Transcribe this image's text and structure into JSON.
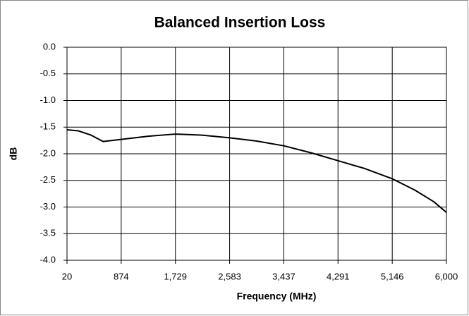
{
  "chart_data": {
    "type": "line",
    "title": "Balanced Insertion Loss",
    "xlabel": "Frequency (MHz)",
    "ylabel": "dB",
    "x": [
      20,
      200,
      400,
      589,
      874,
      1300,
      1729,
      2150,
      2583,
      3000,
      3437,
      3860,
      4291,
      4720,
      5146,
      5500,
      5800,
      6000
    ],
    "series": [
      {
        "name": "Balanced Insertion Loss",
        "color": "#000000",
        "values": [
          -1.55,
          -1.57,
          -1.65,
          -1.77,
          -1.73,
          -1.67,
          -1.63,
          -1.65,
          -1.7,
          -1.76,
          -1.85,
          -1.98,
          -2.13,
          -2.28,
          -2.47,
          -2.68,
          -2.9,
          -3.1
        ]
      }
    ],
    "xlim": [
      20,
      6000
    ],
    "xticks": [
      20,
      874,
      {
        "value": 1729,
        "label": "1,729"
      },
      {
        "value": 2583,
        "label": "2,583"
      },
      {
        "value": 3437,
        "label": "3,437"
      },
      {
        "value": 4291,
        "label": "4,291"
      },
      {
        "value": 5146,
        "label": "5,146"
      },
      {
        "value": 6000,
        "label": "6,000"
      }
    ],
    "ylim": [
      -4,
      0
    ],
    "yticks": [
      {
        "value": 0,
        "label": "0.0"
      },
      -0.5,
      {
        "value": -1,
        "label": "-1.0"
      },
      -1.5,
      {
        "value": -2,
        "label": "-2.0"
      },
      -2.5,
      {
        "value": -3,
        "label": "-3.0"
      },
      -3.5,
      {
        "value": -4,
        "label": "-4.0"
      }
    ],
    "grid": true
  }
}
